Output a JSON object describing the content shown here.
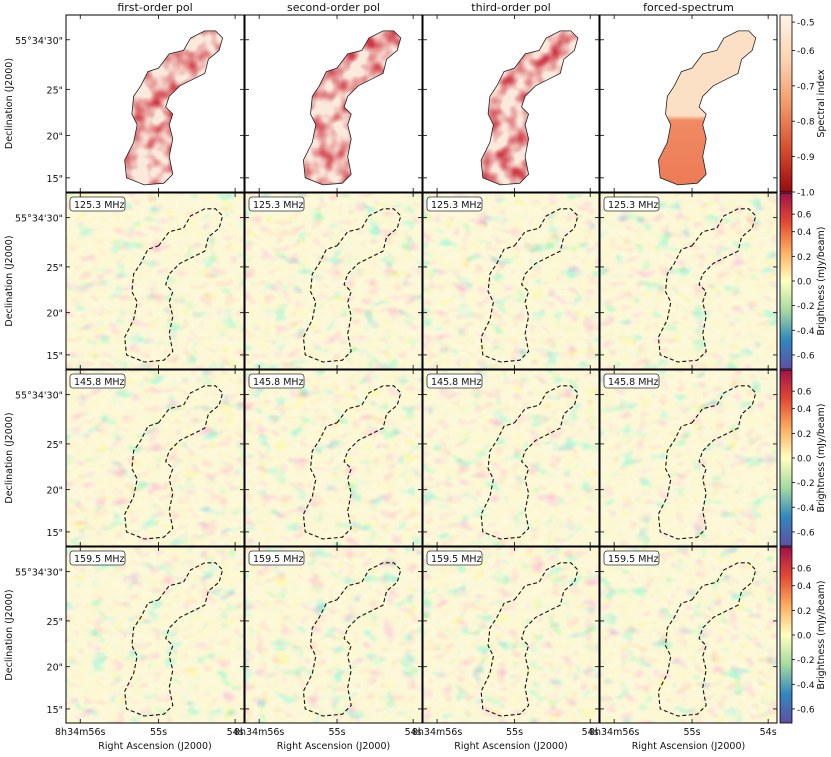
{
  "columns": [
    "first-order pol",
    "second-order pol",
    "third-order pol",
    "forced-spectrum"
  ],
  "rows": [
    {
      "kind": "index",
      "label": ""
    },
    {
      "kind": "residual",
      "label": "125.3 MHz"
    },
    {
      "kind": "residual",
      "label": "145.8 MHz"
    },
    {
      "kind": "residual",
      "label": "159.5 MHz"
    }
  ],
  "y_axis": {
    "label": "Declination (J2000)",
    "ticks": [
      "55°34'30\"",
      "25\"",
      "20\"",
      "15\""
    ]
  },
  "x_axis": {
    "label": "Right Ascension (J2000)",
    "ticks": [
      "8h34m56s",
      "55s",
      "54s"
    ]
  },
  "colorbars": [
    {
      "label": "Spectral index",
      "ticks": [
        "-0.5",
        "-0.6",
        "-0.7",
        "-0.8",
        "-0.9",
        "-1.0"
      ],
      "colors": [
        "#fff3e6",
        "#fbd3b4",
        "#f39c6b",
        "#d74f2f",
        "#9a0a0f"
      ]
    },
    {
      "label": "Brightness (mJy/beam)",
      "ticks": [
        "0.6",
        "0.4",
        "0.2",
        "0.0",
        "-0.2",
        "-0.4",
        "-0.6"
      ],
      "colors": [
        "#a0124a",
        "#e34a33",
        "#fdae61",
        "#ffffbf",
        "#a6dba0",
        "#3288bd",
        "#5e4fa2"
      ]
    },
    {
      "label": "Brightness (mJy/beam)",
      "ticks": [
        "0.6",
        "0.4",
        "0.2",
        "0.0",
        "-0.2",
        "-0.4",
        "-0.6"
      ],
      "colors": [
        "#a0124a",
        "#e34a33",
        "#fdae61",
        "#ffffbf",
        "#a6dba0",
        "#3288bd",
        "#5e4fa2"
      ]
    },
    {
      "label": "Brightness (mJy/beam)",
      "ticks": [
        "0.6",
        "0.4",
        "0.2",
        "0.0",
        "-0.2",
        "-0.4",
        "-0.6"
      ],
      "colors": [
        "#a0124a",
        "#e34a33",
        "#fdae61",
        "#ffffbf",
        "#a6dba0",
        "#3288bd",
        "#5e4fa2"
      ]
    }
  ]
}
